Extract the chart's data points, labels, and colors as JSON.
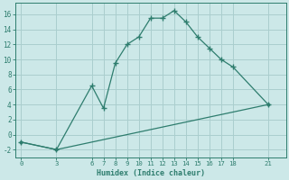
{
  "xlabel": "Humidex (Indice chaleur)",
  "line1_x": [
    0,
    3,
    6,
    7,
    8,
    9,
    10,
    11,
    12,
    13,
    14,
    15,
    16,
    17,
    18,
    21
  ],
  "line1_y": [
    -1,
    -2,
    6.5,
    3.5,
    9.5,
    12,
    13,
    15.5,
    15.5,
    16.5,
    15,
    13,
    11.5,
    10,
    9,
    4
  ],
  "line2_x": [
    0,
    3,
    21
  ],
  "line2_y": [
    -1,
    -2,
    4
  ],
  "color": "#2e7d6e",
  "bg_color": "#cce8e8",
  "grid_color": "#aacece",
  "xticks": [
    0,
    3,
    6,
    7,
    8,
    9,
    10,
    11,
    12,
    13,
    14,
    15,
    16,
    17,
    18,
    21
  ],
  "yticks": [
    -2,
    0,
    2,
    4,
    6,
    8,
    10,
    12,
    14,
    16
  ],
  "ylim": [
    -3,
    17.5
  ],
  "xlim": [
    -0.5,
    22.5
  ]
}
